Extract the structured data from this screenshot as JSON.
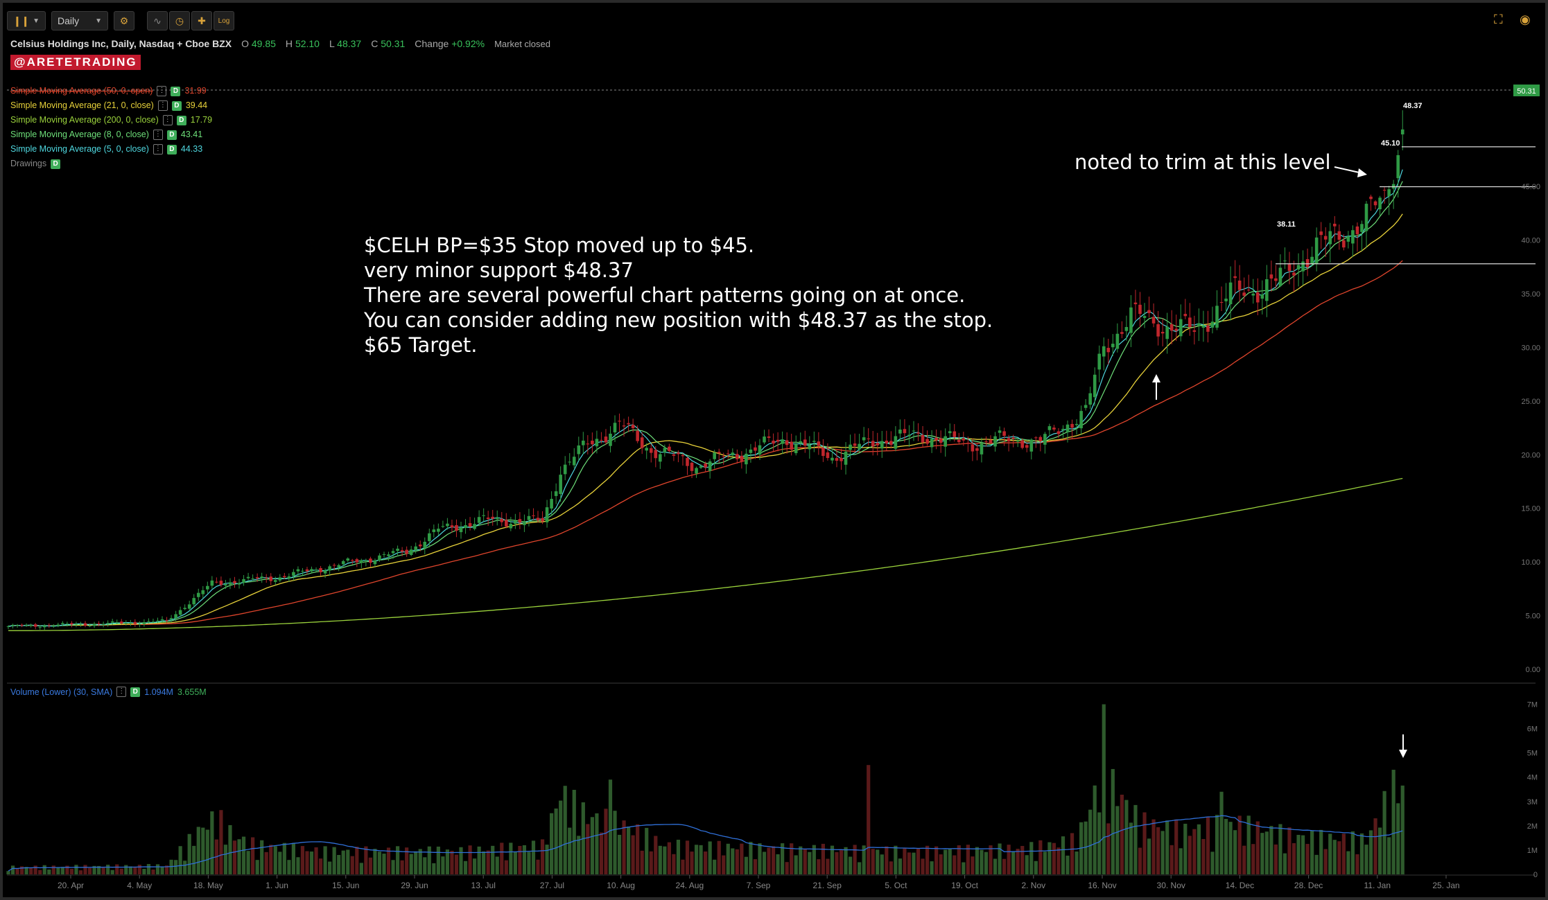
{
  "toolbar": {
    "chart_style_icon": "candle-bars-icon",
    "interval": "Daily",
    "settings_icon": "gear-icon",
    "tools": [
      "drawing-icon",
      "clock-icon",
      "crosshair-icon",
      "log-scale-icon"
    ],
    "log_label": "Log",
    "fullscreen_icon": "fullscreen-icon",
    "camera_icon": "camera-icon"
  },
  "header": {
    "title": "Celsius Holdings Inc, Daily, Nasdaq + Cboe BZX",
    "o_label": "O",
    "o": "49.85",
    "h_label": "H",
    "h": "52.10",
    "l_label": "L",
    "l": "48.37",
    "c_label": "C",
    "c": "50.31",
    "change_label": "Change",
    "change": "+0.92%",
    "market_status": "Market closed"
  },
  "brand": "@ARETETRADING",
  "studies": [
    {
      "label": "Simple Moving Average (50, 0, open)",
      "value": "31.99",
      "color": "#e0452c",
      "struck": true
    },
    {
      "label": "Simple Moving Average (21, 0, close)",
      "value": "39.44",
      "color": "#e8d23a",
      "struck": false
    },
    {
      "label": "Simple Moving Average (200, 0, close)",
      "value": "17.79",
      "color": "#9bd33c",
      "struck": false
    },
    {
      "label": "Simple Moving Average (8, 0, close)",
      "value": "43.41",
      "color": "#6ee07a",
      "struck": false
    },
    {
      "label": "Simple Moving Average (5, 0, close)",
      "value": "44.33",
      "color": "#4fd8e0",
      "struck": false
    }
  ],
  "drawings_label": "Drawings",
  "badge_letter": "D",
  "dots_glyph": "⋮",
  "annotation_main": [
    "$CELH BP=$35 Stop moved up to $45.",
    "very minor support $48.37",
    "There are several powerful chart patterns going on at once.",
    "You can consider adding new position with $48.37 as the stop.",
    "$65 Target."
  ],
  "annotation_trim": "noted to trim at this level",
  "volume_legend": {
    "label": "Volume (Lower) (30, SMA)",
    "v1": "1.094M",
    "v2": "3.655M"
  },
  "price_tags": {
    "last": "50.31",
    "support": "48.37",
    "level_high": "45.10",
    "level_mid": "38.11"
  },
  "colors": {
    "up": "#2f9a45",
    "down": "#c0262c",
    "vol_up": "#2e5a2c",
    "vol_down": "#5a1a1a",
    "vol_sma": "#2f6fd8",
    "last_tag": "#2f9a45"
  },
  "chart_data": {
    "type": "candlestick",
    "ylim": [
      0,
      55
    ],
    "price_ticks": [
      "0.00",
      "5.00",
      "10.00",
      "15.00",
      "20.00",
      "25.00",
      "30.00",
      "35.00",
      "40.00",
      "45.00"
    ],
    "volume_ticks": [
      "0",
      "1M",
      "2M",
      "3M",
      "4M",
      "5M",
      "6M",
      "7M"
    ],
    "date_ticks": [
      "20. Apr",
      "4. May",
      "18. May",
      "1. Jun",
      "15. Jun",
      "29. Jun",
      "13. Jul",
      "27. Jul",
      "10. Aug",
      "24. Aug",
      "7. Sep",
      "21. Sep",
      "5. Oct",
      "19. Oct",
      "2. Nov",
      "16. Nov",
      "30. Nov",
      "14. Dec",
      "28. Dec",
      "11. Jan",
      "25. Jan"
    ],
    "keypoints": [
      [
        0,
        4.0
      ],
      [
        25,
        4.3
      ],
      [
        35,
        4.5
      ],
      [
        45,
        8.0
      ],
      [
        60,
        8.6
      ],
      [
        70,
        9.5
      ],
      [
        88,
        11.0
      ],
      [
        95,
        13.0
      ],
      [
        105,
        13.9
      ],
      [
        118,
        13.8
      ],
      [
        122,
        18.5
      ],
      [
        128,
        21.0
      ],
      [
        135,
        22.8
      ],
      [
        142,
        20.5
      ],
      [
        152,
        19.0
      ],
      [
        162,
        20.2
      ],
      [
        172,
        21.5
      ],
      [
        182,
        19.8
      ],
      [
        192,
        21.4
      ],
      [
        202,
        21.8
      ],
      [
        212,
        21.0
      ],
      [
        222,
        21.5
      ],
      [
        228,
        21.2
      ],
      [
        234,
        23.0
      ],
      [
        238,
        24.0
      ],
      [
        242,
        30.0
      ],
      [
        248,
        33.0
      ],
      [
        256,
        32.0
      ],
      [
        262,
        31.5
      ],
      [
        270,
        35.0
      ],
      [
        280,
        36.0
      ],
      [
        286,
        38.5
      ],
      [
        294,
        40.5
      ],
      [
        300,
        42.0
      ],
      [
        304,
        44.0
      ],
      [
        308,
        50.31
      ]
    ],
    "volume_profile": [
      [
        0,
        0.25
      ],
      [
        35,
        0.3
      ],
      [
        42,
        1.5
      ],
      [
        46,
        2.0
      ],
      [
        50,
        1.3
      ],
      [
        55,
        1.0
      ],
      [
        70,
        0.8
      ],
      [
        100,
        0.8
      ],
      [
        118,
        1.0
      ],
      [
        122,
        2.8
      ],
      [
        128,
        2.0
      ],
      [
        135,
        1.8
      ],
      [
        145,
        1.0
      ],
      [
        170,
        0.9
      ],
      [
        200,
        0.8
      ],
      [
        225,
        0.9
      ],
      [
        236,
        1.2
      ],
      [
        242,
        3.5
      ],
      [
        250,
        1.8
      ],
      [
        260,
        1.5
      ],
      [
        270,
        1.8
      ],
      [
        285,
        1.3
      ],
      [
        300,
        1.2
      ],
      [
        308,
        3.6
      ]
    ],
    "volume_spikes": [
      [
        242,
        7.0
      ],
      [
        133,
        3.9
      ],
      [
        190,
        4.5
      ],
      [
        268,
        3.4
      ],
      [
        308,
        3.655
      ]
    ],
    "ma_200_end": 17.79,
    "ma_50_end": 31.99,
    "ma_21_end": 39.44,
    "ma_8_end": 43.41,
    "ma_5_end": 44.33,
    "levels": [
      45.1,
      38.11,
      48.37
    ]
  }
}
